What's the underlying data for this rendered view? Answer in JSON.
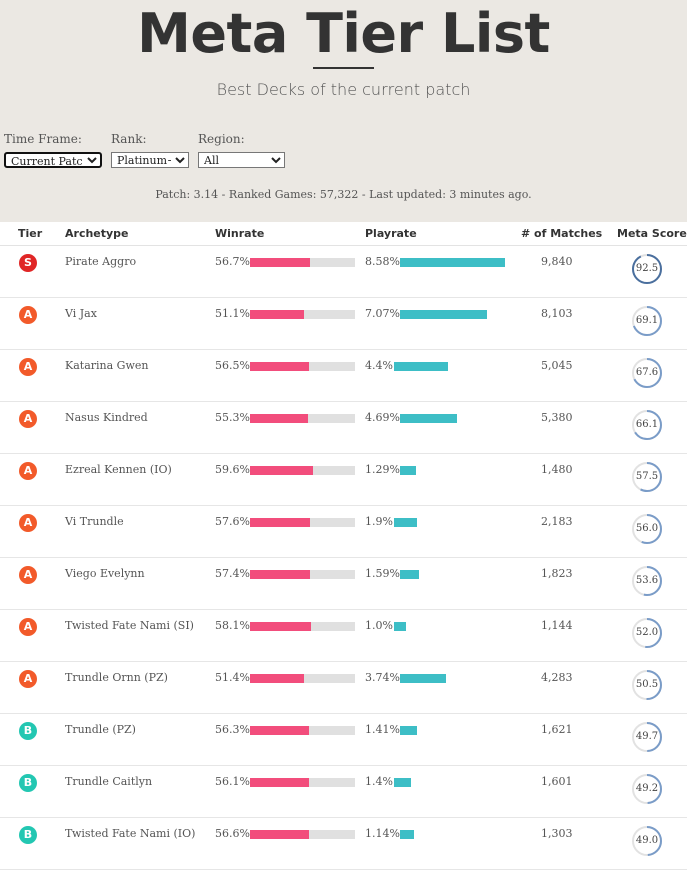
{
  "header": {
    "title": "Meta Tier List",
    "subtitle": "Best Decks of the current patch"
  },
  "filters": {
    "time_frame": {
      "label": "Time Frame:",
      "value": "Current Patch"
    },
    "rank": {
      "label": "Rank:",
      "value": "Platinum+"
    },
    "region": {
      "label": "Region:",
      "value": "All"
    }
  },
  "meta_line": "Patch: 3.14 - Ranked Games: 57,322 - Last updated: 3 minutes ago.",
  "table": {
    "columns": {
      "tier": "Tier",
      "archetype": "Archetype",
      "winrate": "Winrate",
      "playrate": "Playrate",
      "matches": "# of Matches",
      "score": "Meta Score"
    },
    "rows": [
      {
        "tier": "S",
        "archetype": "Pirate Aggro",
        "winrate": "56.7%",
        "winrate_value": 56.7,
        "playrate": "8.58%",
        "playrate_value": 8.58,
        "matches": "9,840",
        "score": "92.5",
        "score_value": 92.5
      },
      {
        "tier": "A",
        "archetype": "Vi Jax",
        "winrate": "51.1%",
        "winrate_value": 51.1,
        "playrate": "7.07%",
        "playrate_value": 7.07,
        "matches": "8,103",
        "score": "69.1",
        "score_value": 69.1
      },
      {
        "tier": "A",
        "archetype": "Katarina Gwen",
        "winrate": "56.5%",
        "winrate_value": 56.5,
        "playrate": "4.4%",
        "playrate_value": 4.4,
        "matches": "5,045",
        "score": "67.6",
        "score_value": 67.6
      },
      {
        "tier": "A",
        "archetype": "Nasus Kindred",
        "winrate": "55.3%",
        "winrate_value": 55.3,
        "playrate": "4.69%",
        "playrate_value": 4.69,
        "matches": "5,380",
        "score": "66.1",
        "score_value": 66.1
      },
      {
        "tier": "A",
        "archetype": "Ezreal Kennen (IO)",
        "winrate": "59.6%",
        "winrate_value": 59.6,
        "playrate": "1.29%",
        "playrate_value": 1.29,
        "matches": "1,480",
        "score": "57.5",
        "score_value": 57.5
      },
      {
        "tier": "A",
        "archetype": "Vi Trundle",
        "winrate": "57.6%",
        "winrate_value": 57.6,
        "playrate": "1.9%",
        "playrate_value": 1.9,
        "matches": "2,183",
        "score": "56.0",
        "score_value": 56.0
      },
      {
        "tier": "A",
        "archetype": "Viego Evelynn",
        "winrate": "57.4%",
        "winrate_value": 57.4,
        "playrate": "1.59%",
        "playrate_value": 1.59,
        "matches": "1,823",
        "score": "53.6",
        "score_value": 53.6
      },
      {
        "tier": "A",
        "archetype": "Twisted Fate Nami (SI)",
        "winrate": "58.1%",
        "winrate_value": 58.1,
        "playrate": "1.0%",
        "playrate_value": 1.0,
        "matches": "1,144",
        "score": "52.0",
        "score_value": 52.0
      },
      {
        "tier": "A",
        "archetype": "Trundle Ornn (PZ)",
        "winrate": "51.4%",
        "winrate_value": 51.4,
        "playrate": "3.74%",
        "playrate_value": 3.74,
        "matches": "4,283",
        "score": "50.5",
        "score_value": 50.5
      },
      {
        "tier": "B",
        "archetype": "Trundle (PZ)",
        "winrate": "56.3%",
        "winrate_value": 56.3,
        "playrate": "1.41%",
        "playrate_value": 1.41,
        "matches": "1,621",
        "score": "49.7",
        "score_value": 49.7
      },
      {
        "tier": "B",
        "archetype": "Trundle Caitlyn",
        "winrate": "56.1%",
        "winrate_value": 56.1,
        "playrate": "1.4%",
        "playrate_value": 1.4,
        "matches": "1,601",
        "score": "49.2",
        "score_value": 49.2
      },
      {
        "tier": "B",
        "archetype": "Twisted Fate Nami (IO)",
        "winrate": "56.6%",
        "winrate_value": 56.6,
        "playrate": "1.14%",
        "playrate_value": 1.14,
        "matches": "1,303",
        "score": "49.0",
        "score_value": 49.0
      }
    ]
  },
  "colors": {
    "winrate_bar": "#f24d7c",
    "playrate_bar": "#3dbec6",
    "tier_S": "#e02626",
    "tier_A": "#f25a2a",
    "tier_B": "#23c7b2",
    "score_ring_high": "#4a6f9e",
    "score_ring": "#7a9cc8"
  }
}
